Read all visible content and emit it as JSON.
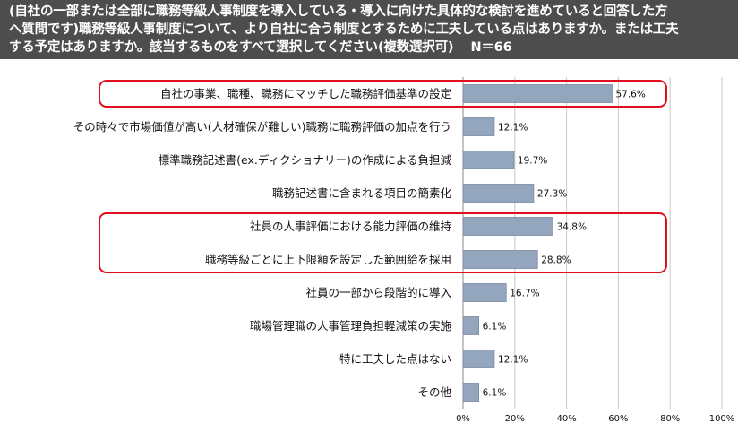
{
  "header": {
    "lines": [
      "(自社の一部または全部に職務等級人事制度を導入している・導入に向けた具体的な検討を進めていると回答した方",
      "へ質問です)職務等級人事制度について、より自社に合う制度とするために工夫している点はありますか。または工夫",
      "する予定はありますか。該当するものをすべて選択してください(複数選択可)　 N＝66"
    ]
  },
  "chart_data": {
    "type": "bar",
    "orientation": "horizontal",
    "categories": [
      "自社の事業、職種、職務にマッチした職務評価基準の設定",
      "その時々で市場価値が高い(人材確保が難しい)職務に職務評価の加点を行う",
      "標準職務記述書(ex.ディクショナリー)の作成による負担減",
      "職務記述書に含まれる項目の簡素化",
      "社員の人事評価における能力評価の維持",
      "職務等級ごとに上下限額を設定した範囲給を採用",
      "社員の一部から段階的に導入",
      "職場管理職の人事管理負担軽減策の実施",
      "特に工夫した点はない",
      "その他"
    ],
    "values": [
      57.6,
      12.1,
      19.7,
      27.3,
      34.8,
      28.8,
      16.7,
      6.1,
      12.1,
      6.1
    ],
    "value_labels": [
      "57.6%",
      "12.1%",
      "19.7%",
      "27.3%",
      "34.8%",
      "28.8%",
      "16.7%",
      "6.1%",
      "12.1%",
      "6.1%"
    ],
    "xlim": [
      0,
      100
    ],
    "x_ticks": [
      0,
      20,
      40,
      60,
      80,
      100
    ],
    "x_tick_labels": [
      "0%",
      "20%",
      "40%",
      "60%",
      "80%",
      "100%"
    ],
    "grid": true,
    "bar_color": "#94a5be",
    "bar_edge_color": "#7b8aa0",
    "highlight_color": "#e0101e",
    "highlight_groups": [
      [
        0
      ],
      [
        4,
        5
      ]
    ]
  }
}
